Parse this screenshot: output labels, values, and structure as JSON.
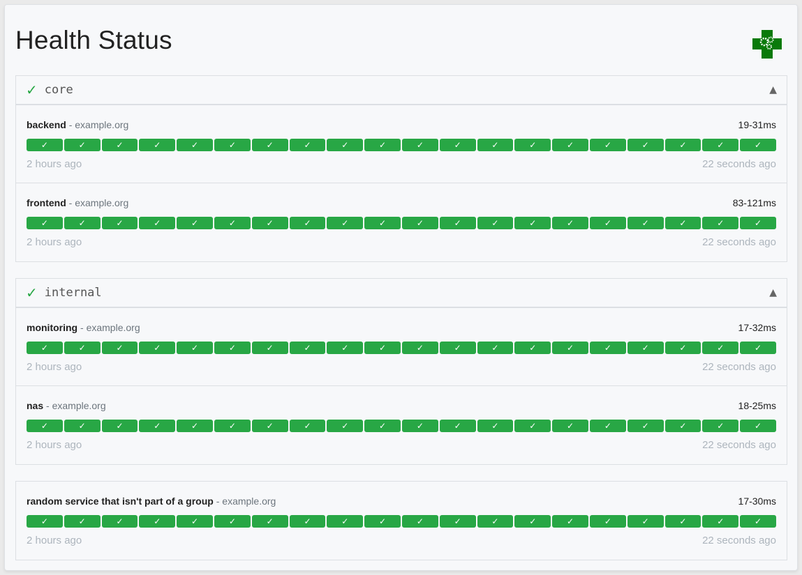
{
  "title": "Health Status",
  "colors": {
    "success": "#28a745",
    "logo": "#0a7a0a"
  },
  "check_glyph": "✓",
  "caret_glyph": "▲",
  "groups": [
    {
      "name": "core",
      "services": [
        {
          "name": "backend",
          "host": "example.org",
          "response_time": "19-31ms",
          "oldest": "2 hours ago",
          "newest": "22 seconds ago",
          "results": [
            "success",
            "success",
            "success",
            "success",
            "success",
            "success",
            "success",
            "success",
            "success",
            "success",
            "success",
            "success",
            "success",
            "success",
            "success",
            "success",
            "success",
            "success",
            "success",
            "success"
          ]
        },
        {
          "name": "frontend",
          "host": "example.org",
          "response_time": "83-121ms",
          "oldest": "2 hours ago",
          "newest": "22 seconds ago",
          "results": [
            "success",
            "success",
            "success",
            "success",
            "success",
            "success",
            "success",
            "success",
            "success",
            "success",
            "success",
            "success",
            "success",
            "success",
            "success",
            "success",
            "success",
            "success",
            "success",
            "success"
          ]
        }
      ]
    },
    {
      "name": "internal",
      "services": [
        {
          "name": "monitoring",
          "host": "example.org",
          "response_time": "17-32ms",
          "oldest": "2 hours ago",
          "newest": "22 seconds ago",
          "results": [
            "success",
            "success",
            "success",
            "success",
            "success",
            "success",
            "success",
            "success",
            "success",
            "success",
            "success",
            "success",
            "success",
            "success",
            "success",
            "success",
            "success",
            "success",
            "success",
            "success"
          ]
        },
        {
          "name": "nas",
          "host": "example.org",
          "response_time": "18-25ms",
          "oldest": "2 hours ago",
          "newest": "22 seconds ago",
          "results": [
            "success",
            "success",
            "success",
            "success",
            "success",
            "success",
            "success",
            "success",
            "success",
            "success",
            "success",
            "success",
            "success",
            "success",
            "success",
            "success",
            "success",
            "success",
            "success",
            "success"
          ]
        }
      ]
    },
    {
      "name": "",
      "services": [
        {
          "name": "random service that isn't part of a group",
          "host": "example.org",
          "response_time": "17-30ms",
          "oldest": "2 hours ago",
          "newest": "22 seconds ago",
          "results": [
            "success",
            "success",
            "success",
            "success",
            "success",
            "success",
            "success",
            "success",
            "success",
            "success",
            "success",
            "success",
            "success",
            "success",
            "success",
            "success",
            "success",
            "success",
            "success",
            "success"
          ]
        }
      ]
    }
  ]
}
